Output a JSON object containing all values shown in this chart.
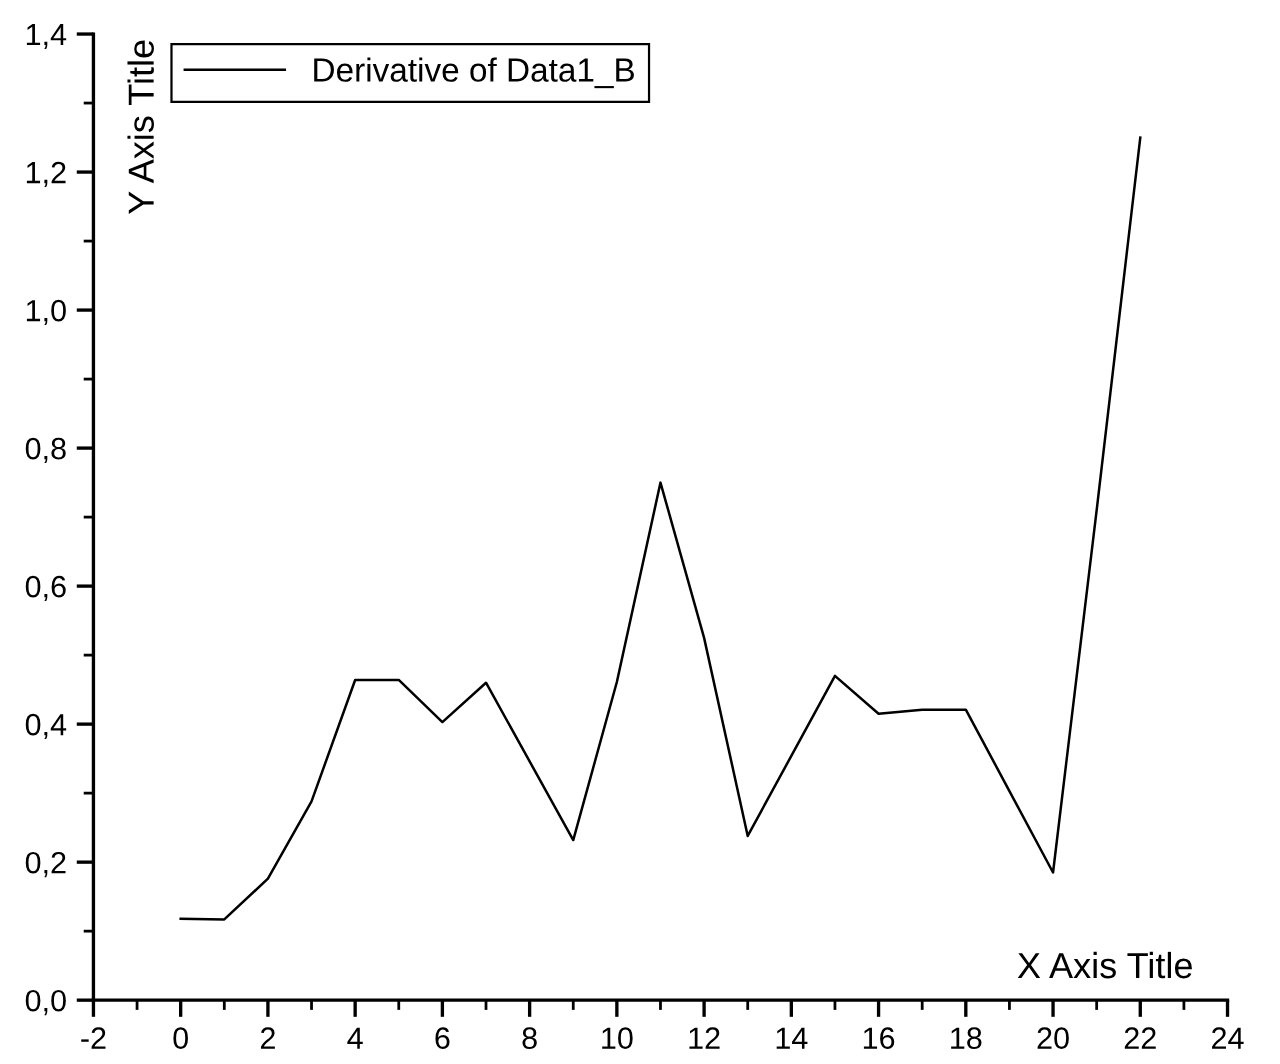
{
  "chart_data": {
    "type": "line",
    "xlabel": "X Axis Title",
    "ylabel": "Y Axis Title",
    "x": [
      0,
      1,
      2,
      3,
      4,
      5,
      6,
      7,
      8,
      9,
      10,
      11,
      12,
      13,
      14,
      15,
      16,
      17,
      18,
      19,
      20,
      21,
      22
    ],
    "series": [
      {
        "name": "Derivative of Data1_B",
        "color": "#000000",
        "values": [
          0.118,
          0.117,
          0.176,
          0.288,
          0.464,
          0.464,
          0.403,
          0.46,
          0.346,
          0.232,
          0.461,
          0.75,
          0.525,
          0.238,
          0.354,
          0.47,
          0.415,
          0.421,
          0.421,
          0.303,
          0.185,
          0.71,
          1.25
        ]
      }
    ],
    "xlim": [
      -2,
      24
    ],
    "xticks": [
      -2,
      0,
      2,
      4,
      6,
      8,
      10,
      12,
      14,
      16,
      18,
      20,
      22,
      24
    ],
    "ylim": [
      0,
      1.4
    ],
    "yticks": [
      {
        "value": 0,
        "label": "0,0"
      },
      {
        "value": 0.2,
        "label": "0,2"
      },
      {
        "value": 0.4,
        "label": "0,4"
      },
      {
        "value": 0.6,
        "label": "0,6"
      },
      {
        "value": 0.8,
        "label": "0,8"
      },
      {
        "value": 1.0,
        "label": "1,0"
      },
      {
        "value": 1.2,
        "label": "1,2"
      },
      {
        "value": 1.4,
        "label": "1,4"
      }
    ],
    "grid": false,
    "legend": "top left",
    "marker": "none",
    "line_style": "solid"
  }
}
